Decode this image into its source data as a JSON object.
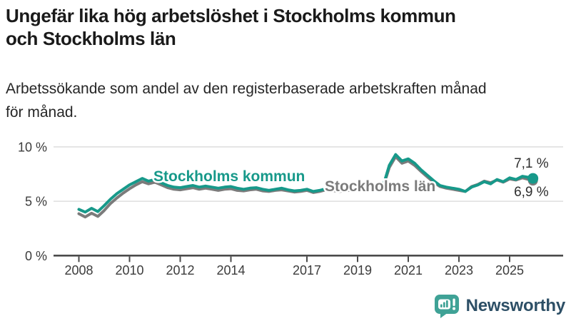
{
  "title": {
    "lines": [
      "Ungefär lika hög arbetslöshet i Stockholms kommun",
      "och Stockholms län"
    ]
  },
  "subtitle": {
    "lines": [
      "Arbetssökande som andel av den registerbaserade arbetskraften månad",
      "för månad."
    ]
  },
  "branding": {
    "name": "Newsworthy",
    "icon": "bar-chart-speech-bubble-icon",
    "icon_color": "#3fa296",
    "text_color": "#2d4f66"
  },
  "colors": {
    "kommun_teal": "#17998a",
    "lan_gray": "#7b7b7b",
    "grid": "#d9d9d9",
    "axis": "#4b4b4b",
    "tick_text": "#3c3c3c",
    "end_label_text": "#2e2e2e"
  },
  "chart_data": {
    "type": "line",
    "x_unit": "year (monthly share of labour force)",
    "grid": "horizontal",
    "xlim": [
      2007,
      2027
    ],
    "ylim": [
      0,
      10.5
    ],
    "x_ticks": [
      2008,
      2010,
      2012,
      2014,
      2017,
      2019,
      2021,
      2023,
      2025
    ],
    "y_ticks": [
      {
        "value": 0,
        "label": "0 %"
      },
      {
        "value": 5,
        "label": "5 %"
      },
      {
        "value": 10,
        "label": "10 %"
      }
    ],
    "x": [
      2008,
      2008.25,
      2008.5,
      2008.75,
      2009,
      2009.25,
      2009.5,
      2009.75,
      2010,
      2010.25,
      2010.5,
      2010.75,
      2011,
      2011.25,
      2011.5,
      2011.75,
      2012,
      2012.25,
      2012.5,
      2012.75,
      2013,
      2013.25,
      2013.5,
      2013.75,
      2014,
      2014.25,
      2014.5,
      2014.75,
      2015,
      2015.25,
      2015.5,
      2015.75,
      2016,
      2016.25,
      2016.5,
      2016.75,
      2017,
      2017.25,
      2017.5,
      2017.75,
      2018,
      2018.25,
      2018.5,
      2018.75,
      2019,
      2019.25,
      2019.5,
      2019.75,
      2020,
      2020.25,
      2020.5,
      2020.75,
      2021,
      2021.25,
      2021.5,
      2021.75,
      2022,
      2022.25,
      2022.5,
      2022.75,
      2023,
      2023.25,
      2023.5,
      2023.75,
      2024,
      2024.25,
      2024.5,
      2024.75,
      2025,
      2025.25,
      2025.5,
      2025.75,
      2025.92
    ],
    "series": [
      {
        "name": "Stockholms kommun",
        "color": "#17998a",
        "end_label": "7,1 %",
        "end_value": 7.1,
        "values": [
          4.25,
          4.0,
          4.35,
          4.05,
          4.6,
          5.2,
          5.7,
          6.1,
          6.5,
          6.8,
          7.1,
          6.85,
          7.0,
          6.7,
          6.45,
          6.3,
          6.25,
          6.35,
          6.45,
          6.3,
          6.4,
          6.3,
          6.2,
          6.3,
          6.35,
          6.2,
          6.1,
          6.2,
          6.25,
          6.1,
          6.0,
          6.1,
          6.2,
          6.05,
          5.95,
          6.0,
          6.1,
          5.9,
          6.0,
          6.15,
          6.1,
          6.0,
          6.05,
          6.15,
          6.2,
          6.1,
          6.15,
          6.25,
          6.35,
          8.3,
          9.3,
          8.7,
          8.9,
          8.5,
          7.9,
          7.4,
          6.9,
          6.45,
          6.3,
          6.2,
          6.1,
          5.9,
          6.3,
          6.5,
          6.8,
          6.6,
          7.0,
          6.8,
          7.15,
          7.0,
          7.3,
          7.2,
          7.1
        ]
      },
      {
        "name": "Stockholms län",
        "color": "#7b7b7b",
        "end_label": "6,9 %",
        "end_value": 6.9,
        "values": [
          3.85,
          3.55,
          3.9,
          3.6,
          4.15,
          4.8,
          5.3,
          5.75,
          6.15,
          6.5,
          6.8,
          6.6,
          6.75,
          6.5,
          6.25,
          6.1,
          6.05,
          6.15,
          6.25,
          6.1,
          6.2,
          6.1,
          6.0,
          6.1,
          6.15,
          6.0,
          5.95,
          6.05,
          6.1,
          5.95,
          5.9,
          6.0,
          6.05,
          5.95,
          5.85,
          5.9,
          6.0,
          5.8,
          5.9,
          6.05,
          6.0,
          5.9,
          5.95,
          6.05,
          6.1,
          6.0,
          6.05,
          6.15,
          6.25,
          8.1,
          9.1,
          8.5,
          8.7,
          8.3,
          7.75,
          7.25,
          6.75,
          6.35,
          6.2,
          6.1,
          6.0,
          5.9,
          6.35,
          6.55,
          6.85,
          6.7,
          6.95,
          6.75,
          7.05,
          6.95,
          7.15,
          7.0,
          6.9
        ]
      }
    ]
  }
}
